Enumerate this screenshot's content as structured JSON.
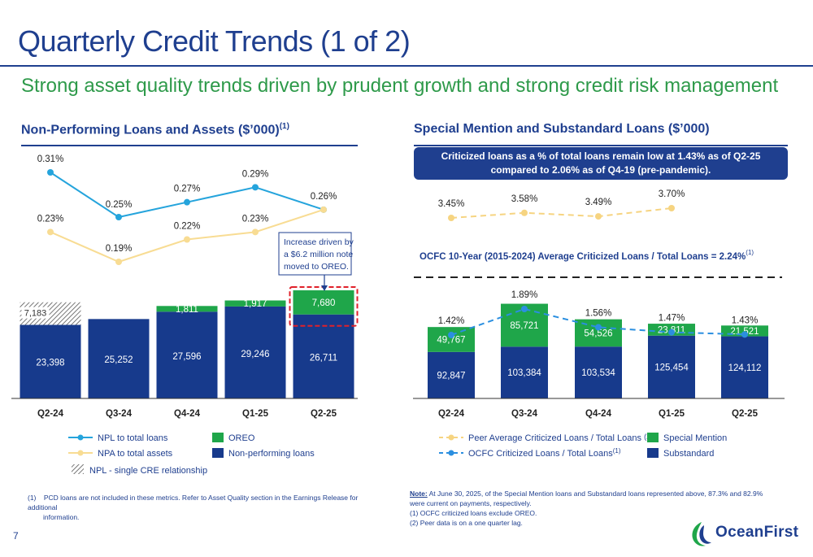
{
  "slide": {
    "title": "Quarterly Credit Trends (1 of 2)",
    "subtitle": "Strong asset quality trends driven by prudent growth and strong credit risk management",
    "page_number": "7"
  },
  "colors": {
    "navy": "#173a8c",
    "green": "#1fa64a",
    "npl_line": "#25a4dc",
    "npa_line": "#f8dc93",
    "peer_line": "#f6d481",
    "ocfc_line": "#2b8fe0",
    "callout_box": "#e0202a",
    "title_blue": "#1f3f8f"
  },
  "left_panel": {
    "title": "Non-Performing Loans and Assets ($’000)",
    "title_sup": "(1)",
    "annotation": [
      "Increase driven by",
      "a $6.2 million note",
      "moved to OREO."
    ],
    "legend": {
      "npl_ratio": "NPL to total loans",
      "npa_ratio": "NPA to total assets",
      "single_cre": "NPL - single CRE relationship",
      "oreo": "OREO",
      "npl": "Non-performing loans"
    },
    "footnote": {
      "marker": "(1)",
      "text_1": "PCD loans are not included in these metrics. Refer to Asset Quality section in the Earnings Release for additional",
      "text_2": "information."
    }
  },
  "right_panel": {
    "title": "Special Mention and Substandard Loans ($’000)",
    "callout_1": "Criticized loans as a % of total loans remain low at  1.43% as of Q2-25",
    "callout_2": "compared to 2.06% as of Q4-19 (pre-pandemic).",
    "avg_label": "OCFC 10-Year (2015-2024) Average Criticized Loans / Total Loans = 2.24%",
    "avg_sup": "(1)",
    "avg_value": 2.24,
    "legend": {
      "peer": "Peer Average Criticized Loans / Total Loans",
      "peer_sup": "(2)",
      "ocfc": "OCFC Criticized Loans / Total Loans",
      "ocfc_sup": "(1)",
      "special_mention": "Special Mention",
      "substandard": "Substandard"
    },
    "note_label": "Note:",
    "note_1": " At June 30, 2025, of the Special Mention loans and Substandard loans represented above, 87.3% and  82.9%",
    "note_2": "were current on payments, respectively.",
    "footnote_1": "(1)    OCFC criticized loans exclude OREO.",
    "footnote_2": "(2)    Peer data is on a one quarter lag."
  },
  "logo": {
    "text": "OceanFirst"
  },
  "chart_data": [
    {
      "type": "bar",
      "stacked": true,
      "categories": [
        "Q2-24",
        "Q3-24",
        "Q4-24",
        "Q1-25",
        "Q2-25"
      ],
      "series": [
        {
          "name": "Non-performing loans",
          "values": [
            23398,
            25252,
            27596,
            29246,
            26711
          ],
          "labels": [
            "23,398",
            "25,252",
            "27,596",
            "29,246",
            "26,711"
          ]
        },
        {
          "name": "OREO",
          "values": [
            0,
            0,
            1811,
            1917,
            7680
          ],
          "labels": [
            "",
            "",
            "1,811",
            "1,917",
            "7,680"
          ]
        },
        {
          "name": "NPL - single CRE relationship",
          "values": [
            7183,
            0,
            0,
            0,
            0
          ],
          "labels": [
            "7,183",
            "",
            "",
            "",
            ""
          ]
        }
      ],
      "lines": [
        {
          "name": "NPL to total loans",
          "values": [
            0.31,
            0.25,
            0.27,
            0.29,
            0.26
          ],
          "labels": [
            "0.31%",
            "0.25%",
            "0.27%",
            "0.29%",
            "0.26%"
          ]
        },
        {
          "name": "NPA to total assets",
          "values": [
            0.23,
            0.19,
            0.22,
            0.23,
            0.26
          ],
          "labels": [
            "0.23%",
            "0.19%",
            "0.22%",
            "0.23%",
            ""
          ]
        }
      ],
      "highlighted_category": "Q2-25",
      "legend_position": "bottom"
    },
    {
      "type": "bar",
      "stacked": true,
      "categories": [
        "Q2-24",
        "Q3-24",
        "Q4-24",
        "Q1-25",
        "Q2-25"
      ],
      "series": [
        {
          "name": "Substandard",
          "values": [
            92847,
            103384,
            103534,
            125454,
            124112
          ],
          "labels": [
            "92,847",
            "103,384",
            "103,534",
            "125,454",
            "124,112"
          ]
        },
        {
          "name": "Special Mention",
          "values": [
            49767,
            85721,
            54526,
            23811,
            21521
          ],
          "labels": [
            "49,767",
            "85,721",
            "54,526",
            "23,811",
            "21,521"
          ]
        }
      ],
      "lines": [
        {
          "name": "OCFC Criticized Loans / Total Loans",
          "values": [
            1.42,
            1.89,
            1.56,
            1.47,
            1.43
          ],
          "labels": [
            "1.42%",
            "1.89%",
            "1.56%",
            "1.47%",
            "1.43%"
          ]
        },
        {
          "name": "Peer Average Criticized Loans / Total Loans",
          "values": [
            3.45,
            3.58,
            3.49,
            3.7
          ],
          "labels": [
            "3.45%",
            "3.58%",
            "3.49%",
            "3.70%"
          ]
        }
      ],
      "reference_line": {
        "name": "OCFC 10-Year (2015-2024) Average Criticized Loans / Total Loans",
        "value": 2.24
      },
      "legend_position": "bottom"
    }
  ]
}
